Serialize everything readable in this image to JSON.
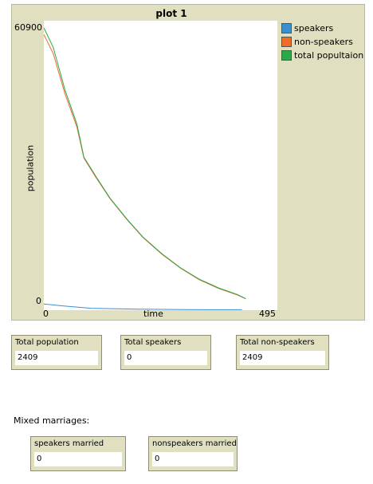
{
  "chart_data": {
    "type": "line",
    "title": "plot 1",
    "xlabel": "time",
    "ylabel": "population",
    "xlim": [
      0,
      495
    ],
    "ylim": [
      0,
      60900
    ],
    "x_tick_labels": [
      "0",
      "495"
    ],
    "y_tick_labels": [
      "0",
      "60900"
    ],
    "legend": "top-right",
    "series": [
      {
        "name": "speakers",
        "color": "#3a8fd0",
        "points": [
          [
            0,
            1300
          ],
          [
            40,
            900
          ],
          [
            100,
            400
          ],
          [
            200,
            200
          ],
          [
            300,
            120
          ],
          [
            420,
            100
          ]
        ]
      },
      {
        "name": "non-speakers",
        "color": "#f06a28",
        "points": [
          [
            0,
            58000
          ],
          [
            20,
            54000
          ],
          [
            45,
            45500
          ],
          [
            70,
            38600
          ],
          [
            85,
            32000
          ],
          [
            110,
            28000
          ],
          [
            140,
            23500
          ],
          [
            175,
            19200
          ],
          [
            210,
            15300
          ],
          [
            250,
            11800
          ],
          [
            290,
            8800
          ],
          [
            330,
            6400
          ],
          [
            370,
            4600
          ],
          [
            410,
            3200
          ],
          [
            428,
            2400
          ]
        ]
      },
      {
        "name": "total popultaion",
        "color": "#2aa84a",
        "points": [
          [
            0,
            59400
          ],
          [
            20,
            55300
          ],
          [
            45,
            46300
          ],
          [
            70,
            39200
          ],
          [
            85,
            32200
          ],
          [
            110,
            28200
          ],
          [
            140,
            23600
          ],
          [
            175,
            19300
          ],
          [
            210,
            15400
          ],
          [
            250,
            11900
          ],
          [
            290,
            8900
          ],
          [
            330,
            6500
          ],
          [
            370,
            4700
          ],
          [
            410,
            3300
          ],
          [
            428,
            2409
          ]
        ]
      }
    ]
  },
  "monitors": {
    "total_population": {
      "label": "Total population",
      "value": "2409"
    },
    "total_speakers": {
      "label": "Total speakers",
      "value": "0"
    },
    "total_non_speakers": {
      "label": "Total non-speakers",
      "value": "2409"
    },
    "speakers_married": {
      "label": "speakers married",
      "value": "0"
    },
    "nonspeakers_married": {
      "label": "nonspeakers married",
      "value": "0"
    }
  },
  "mixed_marriages_label": "Mixed marriages:"
}
